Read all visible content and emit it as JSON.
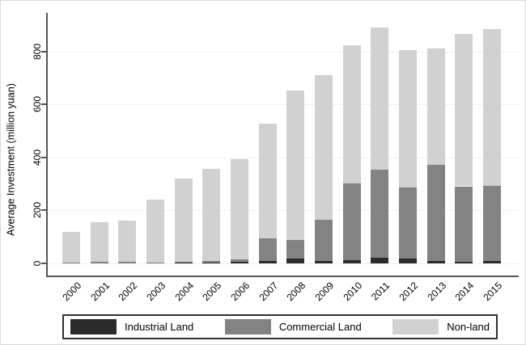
{
  "chart_data": {
    "type": "bar",
    "stacked": true,
    "title": "",
    "xlabel": "",
    "ylabel": "Average Investment (million yuan)",
    "categories": [
      "2000",
      "2001",
      "2002",
      "2003",
      "2004",
      "2005",
      "2006",
      "2007",
      "2008",
      "2009",
      "2010",
      "2011",
      "2012",
      "2013",
      "2014",
      "2015"
    ],
    "series": [
      {
        "name": "Industrial Land",
        "color": "#2b2b2b",
        "values": [
          0,
          0,
          0,
          0,
          2,
          3,
          5,
          10,
          18,
          8,
          12,
          20,
          17,
          10,
          6,
          9
        ]
      },
      {
        "name": "Commercial Land",
        "color": "#838383",
        "values": [
          2,
          5,
          5,
          3,
          3,
          5,
          10,
          85,
          70,
          158,
          290,
          333,
          270,
          363,
          285,
          284
        ]
      },
      {
        "name": "Non-land",
        "color": "#d1d1d1",
        "values": [
          118,
          151,
          158,
          237,
          316,
          349,
          378,
          433,
          565,
          543,
          521,
          536,
          517,
          437,
          575,
          591
        ]
      }
    ],
    "totals": [
      120,
      156,
      163,
      240,
      321,
      357,
      393,
      528,
      653,
      709,
      823,
      889,
      804,
      810,
      866,
      884
    ],
    "y_ticks": [
      0,
      200,
      400,
      600,
      800
    ],
    "ylim": [
      0,
      920
    ],
    "grid": true,
    "gridline_color": "#e7f2f2",
    "axis_color": "#555555",
    "legend_position": "bottom"
  }
}
